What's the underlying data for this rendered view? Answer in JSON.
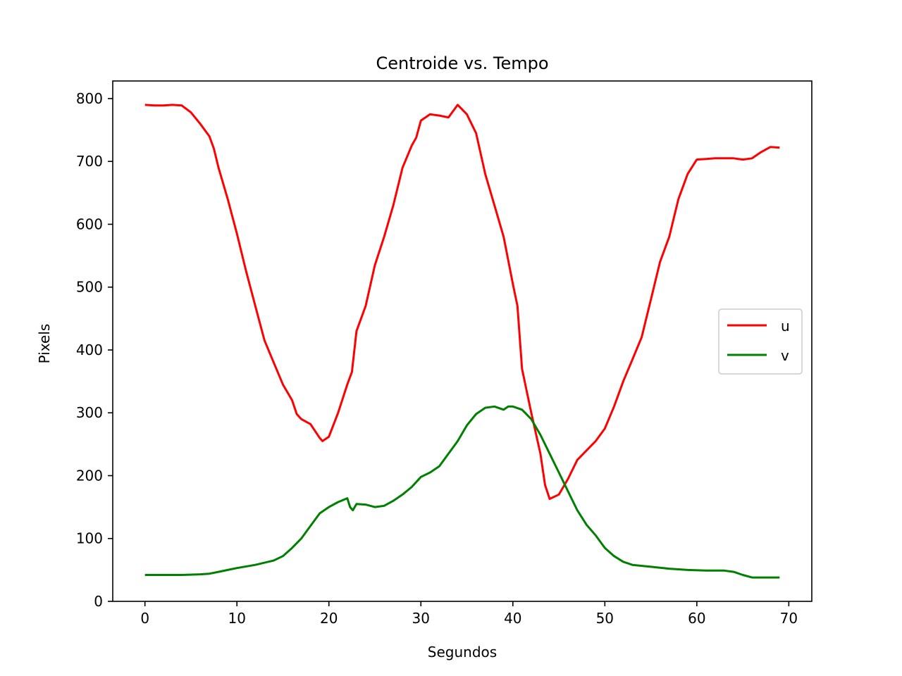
{
  "chart_data": {
    "type": "line",
    "title": "Centroide vs. Tempo",
    "xlabel": "Segundos",
    "ylabel": "Pixels",
    "xlim": [
      -3.5,
      72.5
    ],
    "ylim": [
      0,
      828
    ],
    "xticks": [
      0,
      10,
      20,
      30,
      40,
      50,
      60,
      70
    ],
    "yticks": [
      0,
      100,
      200,
      300,
      400,
      500,
      600,
      700,
      800
    ],
    "grid": false,
    "legend_position": "center-right",
    "series": [
      {
        "name": "u",
        "color": "#ff0000",
        "points": [
          [
            0,
            790
          ],
          [
            1,
            789
          ],
          [
            2,
            789
          ],
          [
            3,
            790
          ],
          [
            4,
            789
          ],
          [
            5,
            778
          ],
          [
            6,
            760
          ],
          [
            7,
            740
          ],
          [
            7.5,
            720
          ],
          [
            8,
            690
          ],
          [
            9,
            640
          ],
          [
            10,
            585
          ],
          [
            11,
            525
          ],
          [
            12,
            470
          ],
          [
            13,
            415
          ],
          [
            14,
            380
          ],
          [
            15,
            345
          ],
          [
            16,
            320
          ],
          [
            16.5,
            298
          ],
          [
            17,
            290
          ],
          [
            18,
            282
          ],
          [
            19,
            260
          ],
          [
            19.3,
            255
          ],
          [
            20,
            262
          ],
          [
            21,
            300
          ],
          [
            22,
            345
          ],
          [
            22.5,
            365
          ],
          [
            23,
            430
          ],
          [
            24,
            470
          ],
          [
            25,
            535
          ],
          [
            26,
            580
          ],
          [
            27,
            630
          ],
          [
            28,
            690
          ],
          [
            29,
            725
          ],
          [
            29.5,
            738
          ],
          [
            30,
            765
          ],
          [
            31,
            775
          ],
          [
            32,
            773
          ],
          [
            33,
            770
          ],
          [
            34,
            790
          ],
          [
            35,
            775
          ],
          [
            36,
            745
          ],
          [
            37,
            680
          ],
          [
            38,
            630
          ],
          [
            39,
            580
          ],
          [
            40,
            505
          ],
          [
            40.5,
            470
          ],
          [
            41,
            370
          ],
          [
            42,
            300
          ],
          [
            43,
            235
          ],
          [
            43.5,
            185
          ],
          [
            44,
            163
          ],
          [
            45,
            170
          ],
          [
            46,
            195
          ],
          [
            47,
            225
          ],
          [
            48,
            240
          ],
          [
            49,
            255
          ],
          [
            50,
            275
          ],
          [
            51,
            310
          ],
          [
            52,
            350
          ],
          [
            53,
            385
          ],
          [
            54,
            420
          ],
          [
            55,
            480
          ],
          [
            56,
            540
          ],
          [
            57,
            580
          ],
          [
            58,
            640
          ],
          [
            59,
            680
          ],
          [
            60,
            703
          ],
          [
            61,
            704
          ],
          [
            62,
            705
          ],
          [
            63,
            705
          ],
          [
            64,
            705
          ],
          [
            65,
            703
          ],
          [
            66,
            705
          ],
          [
            67,
            715
          ],
          [
            68,
            723
          ],
          [
            69,
            722
          ]
        ]
      },
      {
        "name": "v",
        "color": "#008000",
        "points": [
          [
            0,
            42
          ],
          [
            2,
            42
          ],
          [
            4,
            42
          ],
          [
            6,
            43
          ],
          [
            7,
            44
          ],
          [
            8,
            47
          ],
          [
            9,
            50
          ],
          [
            10,
            53
          ],
          [
            12,
            58
          ],
          [
            14,
            65
          ],
          [
            15,
            72
          ],
          [
            16,
            85
          ],
          [
            17,
            100
          ],
          [
            18,
            120
          ],
          [
            19,
            140
          ],
          [
            20,
            150
          ],
          [
            21,
            158
          ],
          [
            22,
            164
          ],
          [
            22.3,
            150
          ],
          [
            22.6,
            145
          ],
          [
            23,
            155
          ],
          [
            24,
            154
          ],
          [
            25,
            150
          ],
          [
            26,
            152
          ],
          [
            27,
            160
          ],
          [
            28,
            170
          ],
          [
            29,
            182
          ],
          [
            30,
            198
          ],
          [
            31,
            205
          ],
          [
            32,
            215
          ],
          [
            33,
            235
          ],
          [
            34,
            255
          ],
          [
            35,
            280
          ],
          [
            36,
            298
          ],
          [
            37,
            308
          ],
          [
            38,
            310
          ],
          [
            39,
            305
          ],
          [
            39.5,
            310
          ],
          [
            40,
            310
          ],
          [
            41,
            305
          ],
          [
            42,
            290
          ],
          [
            43,
            265
          ],
          [
            44,
            235
          ],
          [
            45,
            205
          ],
          [
            46,
            175
          ],
          [
            47,
            145
          ],
          [
            48,
            122
          ],
          [
            49,
            105
          ],
          [
            50,
            85
          ],
          [
            51,
            72
          ],
          [
            52,
            63
          ],
          [
            53,
            58
          ],
          [
            55,
            55
          ],
          [
            57,
            52
          ],
          [
            59,
            50
          ],
          [
            61,
            49
          ],
          [
            63,
            49
          ],
          [
            64,
            47
          ],
          [
            65,
            42
          ],
          [
            66,
            38
          ],
          [
            67,
            38
          ],
          [
            68,
            38
          ],
          [
            69,
            38
          ]
        ]
      }
    ]
  }
}
